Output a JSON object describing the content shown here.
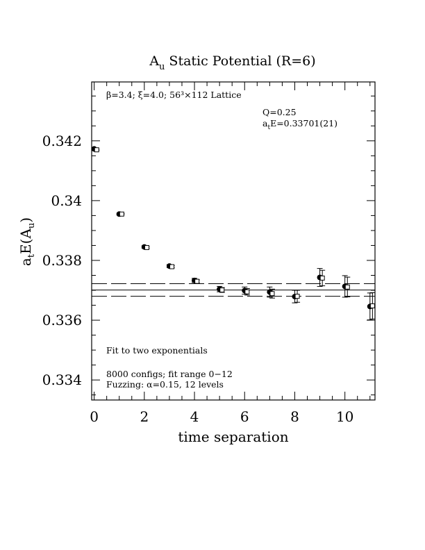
{
  "chart_data": {
    "type": "scatter",
    "title_main": "A",
    "title_sub": "u",
    "title_rest": "Static Potential (R=6)",
    "xlabel": "time separation",
    "ylabel_main": "a",
    "ylabel_sub1": "t",
    "ylabel_mid": "E(A",
    "ylabel_sub2": "u",
    "ylabel_end": ")",
    "xlim": [
      -0.1,
      11.2
    ],
    "ylim": [
      0.33333,
      0.34397
    ],
    "x_ticks": [
      0,
      2,
      4,
      6,
      8,
      10
    ],
    "x_tick_labels": [
      "0",
      "2",
      "4",
      "6",
      "8",
      "10"
    ],
    "y_ticks": [
      0.334,
      0.336,
      0.338,
      0.34,
      0.342
    ],
    "y_tick_labels": [
      "0.334",
      "0.336",
      "0.338",
      "0.34",
      "0.342"
    ],
    "series": [
      {
        "marker": "filled-circle",
        "x": [
          0,
          1,
          2,
          3,
          4,
          5,
          6,
          7,
          8,
          9,
          10,
          11
        ],
        "y": [
          0.34173,
          0.33955,
          0.33845,
          0.33781,
          0.33733,
          0.33704,
          0.33699,
          0.33694,
          0.33679,
          0.33743,
          0.33713,
          0.33646
        ],
        "err": [
          3e-05,
          3e-05,
          4e-05,
          5e-05,
          7e-05,
          9e-05,
          0.00012,
          0.00017,
          0.00021,
          0.0003,
          0.00036,
          0.00045
        ]
      },
      {
        "marker": "open-square",
        "x": [
          0.1,
          1.1,
          2.1,
          3.1,
          4.1,
          5.1,
          6.1,
          7.1,
          8.1,
          9.1,
          10.1,
          11.1
        ],
        "y": [
          0.3417,
          0.33955,
          0.33843,
          0.33779,
          0.3373,
          0.33701,
          0.33695,
          0.33689,
          0.3368,
          0.33741,
          0.33711,
          0.33648
        ],
        "err": [
          2e-05,
          2e-05,
          3e-05,
          4e-05,
          5e-05,
          8e-05,
          0.00011,
          0.00015,
          0.0002,
          0.00026,
          0.00033,
          0.00044
        ]
      }
    ],
    "fit": {
      "value": 0.33701,
      "err": 0.00021,
      "x_range": [
        -0.1,
        11.2
      ]
    }
  },
  "annotations": {
    "lattice": "β=3.4; ξ=4.0; 56³×112 Lattice",
    "q": "Q=0.25",
    "energy_main": "a",
    "energy_sub": "t",
    "energy_rest": "E=0.33701(21)",
    "fit_method": "Fit to two exponentials",
    "configs": "8000 configs; fit range 0−12",
    "fuzzing": "Fuzzing: α=0.15, 12 levels"
  }
}
